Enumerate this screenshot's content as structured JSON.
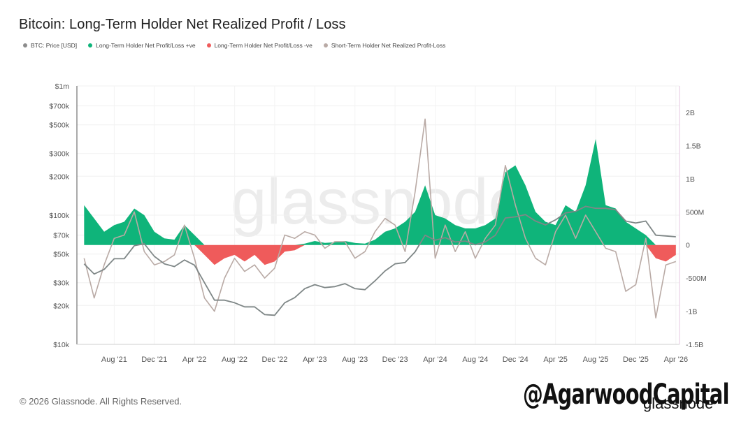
{
  "title": "Bitcoin: Long-Term Holder Net Realized Profit / Loss",
  "legend": [
    {
      "label": "BTC: Price [USD]",
      "color": "#8c8c8c"
    },
    {
      "label": "Long-Term Holder Net Profit/Loss +ve",
      "color": "#0fb47a"
    },
    {
      "label": "Long-Term Holder Net Profit/Loss -ve",
      "color": "#ef5b5b"
    },
    {
      "label": "Short-Term Holder Net Realized Profit-Loss",
      "color": "#b9aaa5"
    }
  ],
  "footer": "© 2026 Glassnode. All Rights Reserved.",
  "watermark_brand": "glassnode",
  "watermark_handle": "@AgarwoodCapital",
  "background_watermark": "glassnode",
  "chart_data": {
    "type": "area",
    "x_ticks": [
      "Aug '21",
      "Dec '21",
      "Apr '22",
      "Aug '22",
      "Dec '22",
      "Apr '23",
      "Aug '23",
      "Dec '23",
      "Apr '24",
      "Aug '24",
      "Dec '24",
      "Apr '25",
      "Aug '25",
      "Dec '25",
      "Apr '26"
    ],
    "y_left": {
      "scale": "log",
      "ticks": [
        "$10k",
        "$20k",
        "$30k",
        "$50k",
        "$70k",
        "$100k",
        "$200k",
        "$300k",
        "$500k",
        "$700k",
        "$1m"
      ],
      "tick_values": [
        10000,
        20000,
        30000,
        50000,
        70000,
        100000,
        200000,
        300000,
        500000,
        700000,
        1000000
      ],
      "range": [
        10000,
        1000000
      ]
    },
    "y_right": {
      "ticks": [
        "2B",
        "1.5B",
        "1B",
        "500M",
        "0",
        "-500M",
        "-1B",
        "-1.5B"
      ],
      "tick_values": [
        2000000000,
        1500000000,
        1000000000,
        500000000,
        0,
        -500000000,
        -1000000000,
        -1500000000
      ],
      "range": [
        -1500000000,
        2400000000
      ]
    },
    "grid": true,
    "months": [
      "2021-05",
      "2021-06",
      "2021-07",
      "2021-08",
      "2021-09",
      "2021-10",
      "2021-11",
      "2021-12",
      "2022-01",
      "2022-02",
      "2022-03",
      "2022-04",
      "2022-05",
      "2022-06",
      "2022-07",
      "2022-08",
      "2022-09",
      "2022-10",
      "2022-11",
      "2022-12",
      "2023-01",
      "2023-02",
      "2023-03",
      "2023-04",
      "2023-05",
      "2023-06",
      "2023-07",
      "2023-08",
      "2023-09",
      "2023-10",
      "2023-11",
      "2023-12",
      "2024-01",
      "2024-02",
      "2024-03",
      "2024-04",
      "2024-05",
      "2024-06",
      "2024-07",
      "2024-08",
      "2024-09",
      "2024-10",
      "2024-11",
      "2024-12",
      "2025-01",
      "2025-02",
      "2025-03",
      "2025-04",
      "2025-05",
      "2025-06",
      "2025-07",
      "2025-08",
      "2025-09",
      "2025-10",
      "2025-11",
      "2025-12",
      "2026-01",
      "2026-02",
      "2026-03",
      "2026-04"
    ],
    "series": [
      {
        "name": "BTC: Price [USD]",
        "values": [
          42000,
          35000,
          38000,
          46000,
          46000,
          58000,
          60000,
          48000,
          42000,
          40000,
          45000,
          41000,
          30000,
          22000,
          22000,
          21000,
          19500,
          19500,
          17000,
          16800,
          21000,
          23000,
          27000,
          29000,
          27500,
          28000,
          29500,
          27000,
          26500,
          31000,
          37000,
          42000,
          43000,
          52000,
          70000,
          64000,
          67000,
          62000,
          63000,
          59000,
          62000,
          70000,
          95000,
          97000,
          101000,
          90000,
          84000,
          92000,
          104000,
          107000,
          117000,
          113000,
          113000,
          110000,
          90000,
          87000,
          90000,
          70000,
          69000,
          68000
        ]
      },
      {
        "name": "Long-Term Holder Net Profit/Loss +ve",
        "values": [
          600000000,
          400000000,
          200000000,
          300000000,
          350000000,
          550000000,
          450000000,
          200000000,
          100000000,
          80000000,
          300000000,
          150000000,
          0,
          0,
          0,
          0,
          0,
          0,
          0,
          0,
          0,
          0,
          20000000,
          60000000,
          30000000,
          40000000,
          60000000,
          30000000,
          20000000,
          80000000,
          200000000,
          250000000,
          350000000,
          500000000,
          900000000,
          450000000,
          400000000,
          300000000,
          250000000,
          250000000,
          300000000,
          400000000,
          1100000000,
          1200000000,
          900000000,
          500000000,
          350000000,
          300000000,
          600000000,
          500000000,
          900000000,
          1600000000,
          600000000,
          550000000,
          350000000,
          250000000,
          150000000,
          0,
          0,
          0
        ]
      },
      {
        "name": "Long-Term Holder Net Profit/Loss -ve",
        "values": [
          0,
          0,
          0,
          0,
          0,
          0,
          0,
          0,
          0,
          0,
          0,
          0,
          -150000000,
          -300000000,
          -200000000,
          -150000000,
          -250000000,
          -150000000,
          -300000000,
          -250000000,
          -100000000,
          -80000000,
          0,
          0,
          0,
          0,
          0,
          0,
          0,
          0,
          0,
          0,
          0,
          0,
          0,
          0,
          0,
          0,
          0,
          0,
          0,
          0,
          0,
          0,
          0,
          0,
          0,
          0,
          0,
          0,
          0,
          0,
          0,
          0,
          0,
          0,
          0,
          -200000000,
          -250000000,
          -150000000
        ]
      },
      {
        "name": "Short-Term Holder Net Realized Profit-Loss",
        "values": [
          -200000000,
          -800000000,
          -300000000,
          100000000,
          150000000,
          500000000,
          -100000000,
          -300000000,
          -250000000,
          -150000000,
          300000000,
          -200000000,
          -800000000,
          -1000000000,
          -500000000,
          -200000000,
          -400000000,
          -300000000,
          -500000000,
          -350000000,
          150000000,
          100000000,
          200000000,
          150000000,
          -50000000,
          50000000,
          50000000,
          -200000000,
          -100000000,
          200000000,
          400000000,
          300000000,
          -100000000,
          800000000,
          1900000000,
          -200000000,
          300000000,
          -100000000,
          200000000,
          -200000000,
          100000000,
          300000000,
          1200000000,
          600000000,
          100000000,
          -200000000,
          -300000000,
          200000000,
          450000000,
          100000000,
          450000000,
          200000000,
          -50000000,
          -100000000,
          -700000000,
          -600000000,
          100000000,
          -1100000000,
          -300000000,
          -250000000
        ]
      }
    ]
  }
}
